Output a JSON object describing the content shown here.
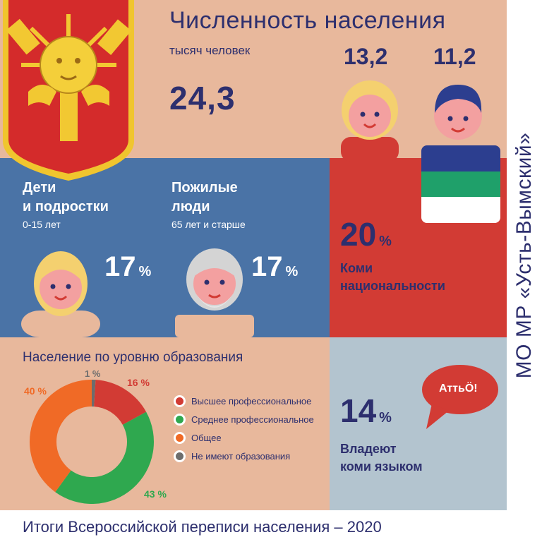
{
  "header": {
    "title": "Численность населения",
    "unit": "тысяч человек",
    "total": "24,3",
    "women": "13,2",
    "men": "11,2"
  },
  "children": {
    "label_line1": "Дети",
    "label_line2": "и подростки",
    "age": "0-15 лет",
    "percent": "17",
    "percent_sign": "%"
  },
  "elderly": {
    "label_line1": "Пожилые",
    "label_line2": "люди",
    "age": "65 лет и старше",
    "percent": "17",
    "percent_sign": "%"
  },
  "komi": {
    "percent": "20",
    "percent_sign": "%",
    "label_line1": "Коми",
    "label_line2": "национальности"
  },
  "language": {
    "percent": "14",
    "percent_sign": "%",
    "label_line1": "Владеют",
    "label_line2": "коми языком",
    "bubble": "АттьÖ!"
  },
  "education": {
    "title": "Население по уровню образования",
    "legend": [
      "Высшее профессиональное",
      "Среднее профессиональное",
      "Общее",
      "Не имеют образования"
    ],
    "labels": [
      "16 %",
      "43 %",
      "40 %",
      "1 %"
    ],
    "colors": [
      "#d23b34",
      "#2fa84f",
      "#f06a26",
      "#6d6d6d"
    ]
  },
  "chart_data": {
    "type": "pie",
    "categories": [
      "Высшее профессиональное",
      "Среднее профессиональное",
      "Общее",
      "Не имеют образования"
    ],
    "values": [
      16,
      43,
      40,
      1
    ],
    "title": "Население по уровню образования"
  },
  "side_title": "МО МР «Усть-Вымский»",
  "footer": "Итоги Всероссийской переписи населения – 2020",
  "icons": [
    "coat-of-arms-icon",
    "woman-icon",
    "man-icon",
    "komi-flag-icon",
    "child-icon",
    "elder-icon",
    "speech-bubble-icon"
  ]
}
